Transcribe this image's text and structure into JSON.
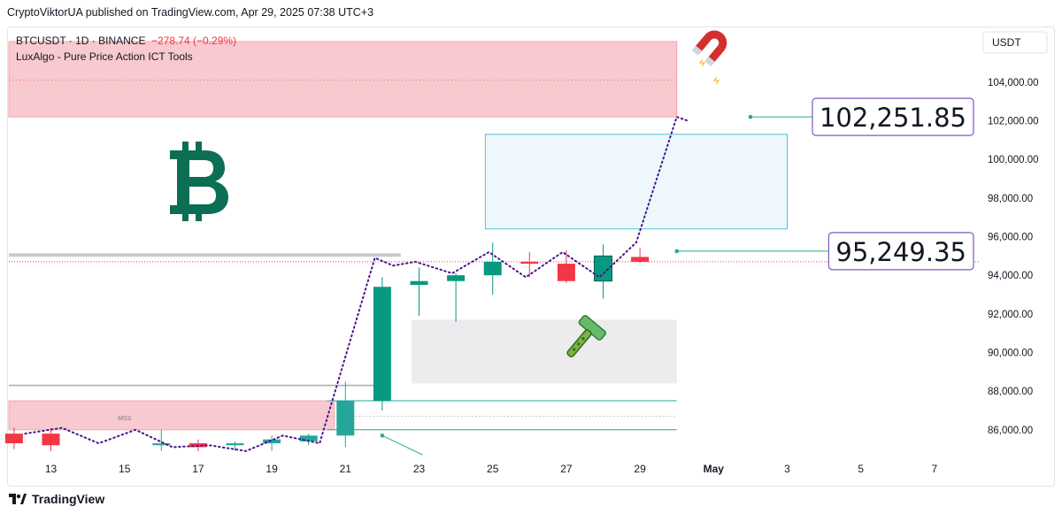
{
  "header": {
    "text": "CryptoViktorUA published on TradingView.com, Apr 29, 2025 07:38 UTC+3"
  },
  "legend": {
    "symbol": "BTCUSDT · 1D · BINANCE",
    "change": "−278.74 (−0.29%)",
    "indicator": "LuxAlgo - Pure Price Action ICT Tools"
  },
  "footer": {
    "brand": "TradingView"
  },
  "colors": {
    "up": "#26a69a",
    "up_dark": "#089981",
    "down": "#f23645",
    "bitcoin": "#0b6e55",
    "projection": "#4a148c"
  },
  "icons": [
    "bitcoin-icon",
    "magnet-icon",
    "razor-icon",
    "tradingview-logo-icon"
  ],
  "chart_data": {
    "type": "candlestick",
    "symbol": "BTCUSDT",
    "currency": "USDT",
    "ylim": [
      84800,
      106100
    ],
    "y_ticks": [
      "104,000.00",
      "102,000.00",
      "100,000.00",
      "98,000.00",
      "96,000.00",
      "94,000.00",
      "92,000.00",
      "90,000.00",
      "88,000.00",
      "86,000.00"
    ],
    "x_ticks": [
      "13",
      "15",
      "17",
      "19",
      "21",
      "23",
      "25",
      "27",
      "29",
      "May",
      "3",
      "5",
      "7"
    ],
    "candles": [
      {
        "day": 12,
        "open": 85800,
        "high": 86100,
        "low": 85000,
        "close": 85300
      },
      {
        "day": 13,
        "open": 85800,
        "high": 86100,
        "low": 84900,
        "close": 85200
      },
      {
        "day": 16,
        "open": 85200,
        "high": 86000,
        "low": 84900,
        "close": 85300
      },
      {
        "day": 17,
        "open": 85300,
        "high": 85500,
        "low": 84900,
        "close": 85100
      },
      {
        "day": 18,
        "open": 85200,
        "high": 85400,
        "low": 84900,
        "close": 85300
      },
      {
        "day": 19,
        "open": 85300,
        "high": 85700,
        "low": 84900,
        "close": 85500
      },
      {
        "day": 20,
        "open": 85400,
        "high": 85800,
        "low": 85200,
        "close": 85700
      },
      {
        "day": 21,
        "open": 85700,
        "high": 88500,
        "low": 85100,
        "close": 87500
      },
      {
        "day": 22,
        "open": 87500,
        "high": 93900,
        "low": 87000,
        "close": 93400
      },
      {
        "day": 23,
        "open": 93500,
        "high": 94400,
        "low": 91900,
        "close": 93700
      },
      {
        "day": 24,
        "open": 93700,
        "high": 94100,
        "low": 91600,
        "close": 94000
      },
      {
        "day": 25,
        "open": 94000,
        "high": 95700,
        "low": 93000,
        "close": 94700
      },
      {
        "day": 26,
        "open": 94700,
        "high": 95200,
        "low": 93900,
        "close": 94600
      },
      {
        "day": 27,
        "open": 94600,
        "high": 95300,
        "low": 93600,
        "close": 93700
      },
      {
        "day": 28,
        "open": 93700,
        "high": 95600,
        "low": 92800,
        "close": 95000
      },
      {
        "day": 29,
        "open": 94950,
        "high": 95400,
        "low": 94650,
        "close": 94700
      }
    ],
    "last_price_line": 94700,
    "zones": [
      {
        "kind": "supply",
        "color": "#f8c9ce",
        "from_day": 11.8,
        "to_day": 30,
        "low": 102200,
        "high": 106100,
        "mid": 104100
      },
      {
        "kind": "fvg",
        "color": "#eef8fc",
        "from_day": 24.8,
        "to_day": 33,
        "low": 96400,
        "high": 101300
      },
      {
        "kind": "demand",
        "color": "#ececef",
        "from_day": 22.8,
        "to_day": 30,
        "low": 88400,
        "high": 91700
      },
      {
        "kind": "supply",
        "color": "#f8c9ce",
        "from_day": 11.8,
        "to_day": 20.7,
        "low": 86000,
        "high": 87500
      }
    ],
    "levels": [
      {
        "price": 95050,
        "color": "#c9cbd1",
        "from_day": 11.8,
        "to_day": 22.5,
        "width": 4
      },
      {
        "price": 88300,
        "color": "#a9acb4",
        "from_day": 11.8,
        "to_day": 22.2,
        "width": 1.5
      },
      {
        "price": 87500,
        "color": "#26a69a",
        "from_day": 20.5,
        "to_day": 30,
        "width": 1
      },
      {
        "price": 86000,
        "color": "#26a69a",
        "from_day": 20.5,
        "to_day": 30,
        "width": 1
      }
    ],
    "annotation_mss": "MSS",
    "projection_path": [
      [
        12.3,
        85800
      ],
      [
        13.3,
        86100
      ],
      [
        14.3,
        85300
      ],
      [
        15.3,
        86000
      ],
      [
        16.3,
        85100
      ],
      [
        17.3,
        85200
      ],
      [
        18.3,
        84900
      ],
      [
        19.3,
        85700
      ],
      [
        20.3,
        85300
      ],
      [
        21.8,
        94900
      ],
      [
        22.3,
        94500
      ],
      [
        22.9,
        94700
      ],
      [
        23.9,
        94100
      ],
      [
        24.9,
        95200
      ],
      [
        25.9,
        93900
      ],
      [
        26.9,
        95200
      ],
      [
        27.9,
        93900
      ],
      [
        28.9,
        95700
      ],
      [
        30.0,
        102200
      ],
      [
        30.3,
        102000
      ]
    ],
    "targets": [
      {
        "price_text": "102,251.85",
        "price": 102200,
        "from_day": 32,
        "to_day": 36.2
      },
      {
        "price_text": "95,249.35",
        "price": 95250,
        "from_day": 30,
        "to_day": 35.5
      }
    ]
  }
}
